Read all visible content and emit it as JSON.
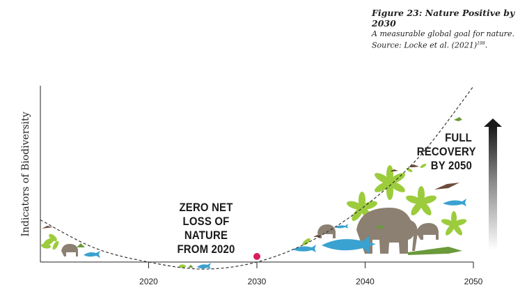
{
  "caption": {
    "title": "Figure 23: Nature Positive by 2030",
    "description": "A measurable global goal for nature. Source: Locke et al. (2021)",
    "superscript": "198"
  },
  "annotations": {
    "zero_net": [
      "ZERO NET",
      "LOSS OF NATURE",
      "FROM 2020"
    ],
    "full_recovery": [
      "FULL",
      "RECOVERY",
      "BY 2050"
    ]
  },
  "colors": {
    "curve": "#333333",
    "marker": "#d81e5b",
    "arrow_top": "#1a1a1a",
    "arrow_bottom": "#ffffff",
    "leaf_green": "#9ccc3c",
    "animal_brown": "#8b8071",
    "shark_blue": "#3aa2d0",
    "croc_green": "#6a9a3a"
  },
  "icons": [
    "biodiversity-illustration-left-icon",
    "biodiversity-illustration-right-icon",
    "elephant-icon",
    "shark-icon",
    "crocodile-icon",
    "bird-icon",
    "leaf-icon",
    "up-arrow-icon"
  ],
  "chart_data": {
    "type": "line",
    "title": "",
    "xlabel": "",
    "ylabel": "Indicators of Biodiversity",
    "x_ticks": [
      2020,
      2030,
      2040,
      2050
    ],
    "xlim": [
      2010,
      2050
    ],
    "y_ticks": [],
    "series": [
      {
        "style": "dashed",
        "x": [
          2010,
          2015,
          2020,
          2025,
          2030,
          2035,
          2040,
          2045,
          2050
        ],
        "y": [
          0.24,
          0.08,
          0.0,
          -0.04,
          0.0,
          0.12,
          0.32,
          0.6,
          1.0
        ]
      }
    ],
    "markers": [
      {
        "x": 2030,
        "y": 0.0
      }
    ]
  }
}
